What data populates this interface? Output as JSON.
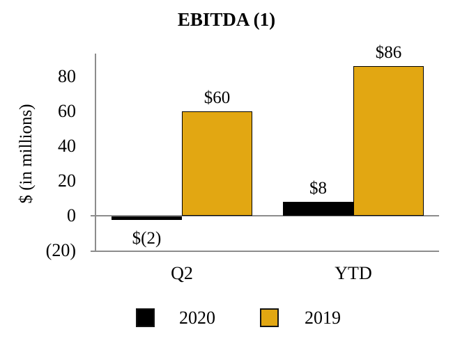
{
  "chart_data": {
    "type": "bar",
    "title": "EBITDA (1)",
    "ylabel": "$ (in millions)",
    "xlabel": "",
    "categories": [
      "Q2",
      "YTD"
    ],
    "series": [
      {
        "name": "2020",
        "color": "#000000",
        "values": [
          -2,
          8
        ],
        "labels": [
          "$(2)",
          "$8"
        ]
      },
      {
        "name": "2019",
        "color": "#e2a712",
        "values": [
          60,
          86
        ],
        "labels": [
          "$60",
          "$86"
        ]
      }
    ],
    "y_ticks": [
      {
        "value": 80,
        "label": "80"
      },
      {
        "value": 60,
        "label": "60"
      },
      {
        "value": 40,
        "label": "40"
      },
      {
        "value": 20,
        "label": "20"
      },
      {
        "value": 0,
        "label": "0"
      },
      {
        "value": -20,
        "label": "(20)"
      }
    ],
    "ylim": [
      -20,
      93
    ],
    "grid": false,
    "legend_position": "bottom"
  },
  "colors": {
    "axis_line": "#8c8c8c",
    "bar_2019": "#e2a712",
    "bar_2020": "#000000",
    "text": "#000000",
    "background": "#ffffff"
  }
}
